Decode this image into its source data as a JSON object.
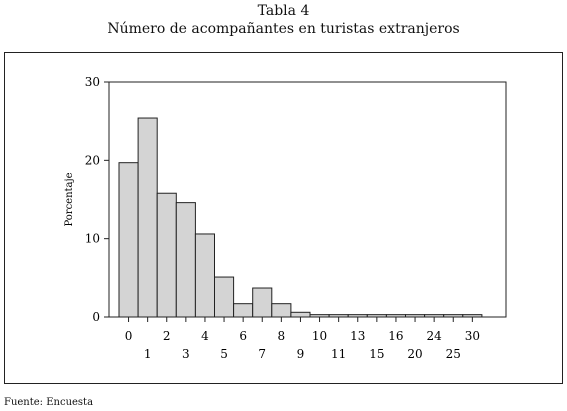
{
  "header": {
    "title_line1": "Tabla 4",
    "title_line2": "Número de acompañantes en turistas extranjeros"
  },
  "footer": {
    "source": "Fuente: Encuesta"
  },
  "chart_data": {
    "type": "bar",
    "title": "Número de acompañantes en turistas extranjeros",
    "ylabel": "Porcentaje",
    "xlabel": "",
    "ylim": [
      0,
      30
    ],
    "yticks": [
      0,
      10,
      20,
      30
    ],
    "grid": false,
    "categories": [
      "0",
      "1",
      "2",
      "3",
      "4",
      "5",
      "6",
      "7",
      "8",
      "9",
      "10",
      "11",
      "13",
      "15",
      "16",
      "20",
      "24",
      "25",
      "30"
    ],
    "values": [
      19.7,
      25.4,
      15.8,
      14.6,
      10.6,
      5.1,
      1.7,
      3.7,
      1.7,
      0.6,
      0.3,
      0.3,
      0.3,
      0.3,
      0.3,
      0.3,
      0.3,
      0.3,
      0.3
    ],
    "bar_color": "#d4d4d4"
  }
}
